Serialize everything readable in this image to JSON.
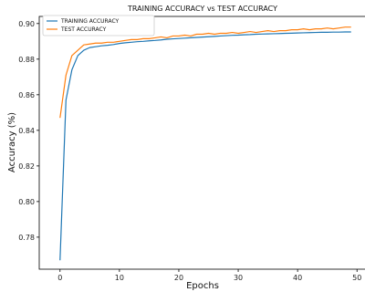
{
  "chart_data": {
    "type": "line",
    "title": "TRAINING ACCURACY vs TEST ACCURACY",
    "xlabel": "Epochs",
    "ylabel": "Accuracy (%)",
    "xlim": [
      -3.5,
      51.5
    ],
    "ylim": [
      0.762,
      0.904
    ],
    "xticks": [
      0,
      10,
      20,
      30,
      40,
      50
    ],
    "yticks": [
      0.78,
      0.8,
      0.82,
      0.84,
      0.86,
      0.88,
      0.9
    ],
    "ytick_labels": [
      "0.78",
      "0.80",
      "0.82",
      "0.84",
      "0.86",
      "0.88",
      "0.90"
    ],
    "legend_position": "top-left",
    "grid": false,
    "x": [
      0,
      1,
      2,
      3,
      4,
      5,
      6,
      7,
      8,
      9,
      10,
      11,
      12,
      13,
      14,
      15,
      16,
      17,
      18,
      19,
      20,
      21,
      22,
      23,
      24,
      25,
      26,
      27,
      28,
      29,
      30,
      31,
      32,
      33,
      34,
      35,
      36,
      37,
      38,
      39,
      40,
      41,
      42,
      43,
      44,
      45,
      46,
      47,
      48,
      49
    ],
    "series": [
      {
        "name": "TRAINING ACCURACY",
        "color": "#1f77b4",
        "values": [
          0.767,
          0.857,
          0.874,
          0.882,
          0.885,
          0.8865,
          0.887,
          0.8875,
          0.8878,
          0.8882,
          0.8888,
          0.8892,
          0.8895,
          0.8898,
          0.89,
          0.8903,
          0.8905,
          0.8908,
          0.8912,
          0.8914,
          0.8916,
          0.8918,
          0.892,
          0.8922,
          0.8924,
          0.8926,
          0.8928,
          0.893,
          0.8932,
          0.8934,
          0.8935,
          0.8937,
          0.8938,
          0.894,
          0.8941,
          0.8942,
          0.8943,
          0.8944,
          0.8945,
          0.8946,
          0.8947,
          0.8948,
          0.8949,
          0.895,
          0.8951,
          0.8951,
          0.8952,
          0.8952,
          0.8953,
          0.8953
        ]
      },
      {
        "name": "TEST ACCURACY",
        "color": "#ff7f0e",
        "values": [
          0.847,
          0.871,
          0.882,
          0.885,
          0.888,
          0.8885,
          0.889,
          0.889,
          0.8895,
          0.8895,
          0.89,
          0.8905,
          0.891,
          0.891,
          0.8915,
          0.8915,
          0.892,
          0.8925,
          0.892,
          0.893,
          0.893,
          0.8935,
          0.893,
          0.894,
          0.894,
          0.8945,
          0.894,
          0.8945,
          0.8945,
          0.895,
          0.8945,
          0.895,
          0.8955,
          0.895,
          0.8955,
          0.896,
          0.8955,
          0.896,
          0.896,
          0.8965,
          0.8965,
          0.897,
          0.8965,
          0.897,
          0.897,
          0.8975,
          0.897,
          0.8975,
          0.898,
          0.898
        ]
      }
    ]
  }
}
